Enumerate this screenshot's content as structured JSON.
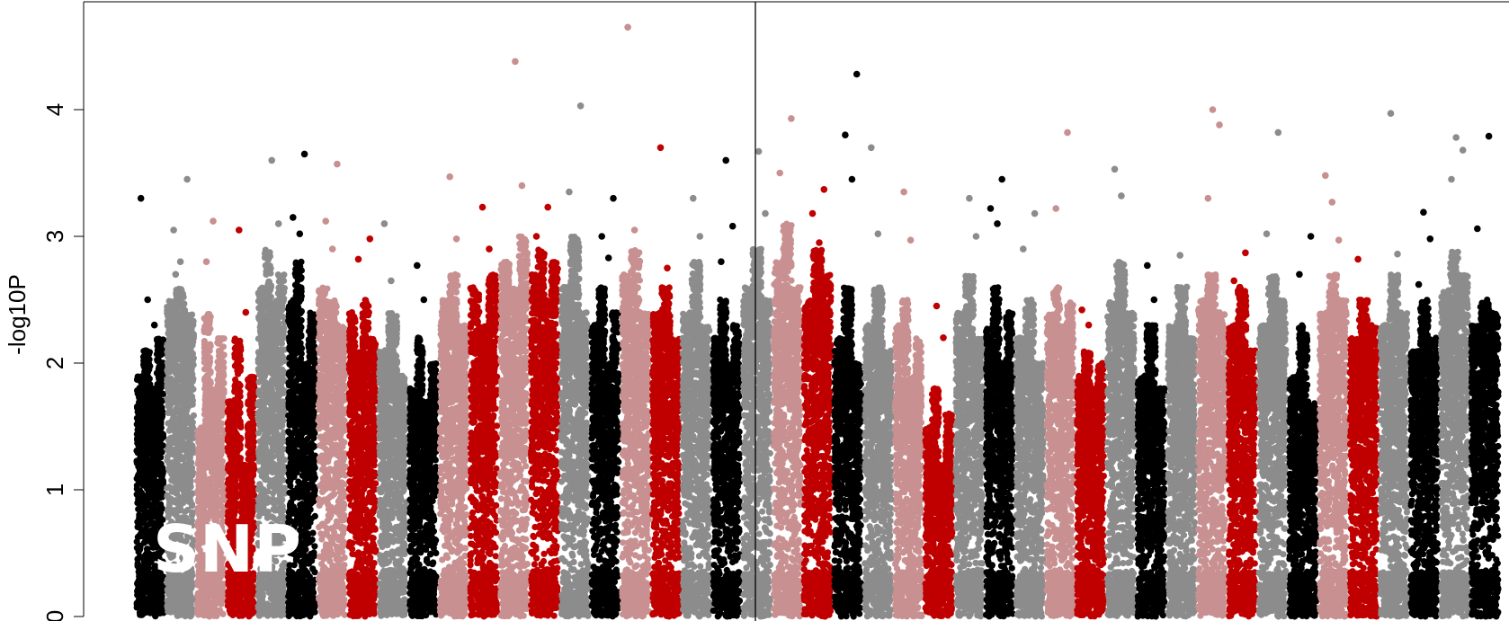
{
  "chart_data": {
    "type": "scatter",
    "title": "",
    "overlay_label": "SNP",
    "xlabel": "",
    "ylabel": "-log10P",
    "ylim": [
      0,
      4.75
    ],
    "yticks": [
      "0",
      "1",
      "2",
      "3",
      "4"
    ],
    "x_axis_visible": false,
    "grid": false,
    "legend": "none",
    "reference_line": {
      "orientation": "vertical",
      "color": "#000000"
    },
    "palette": {
      "dark": "#000000",
      "grey": "#8c8c8c",
      "red": "#c00000",
      "pink": "#c89090"
    },
    "blocks": [
      {
        "color": "dark",
        "top": [
          1.9,
          2.1,
          1.8,
          2.2
        ],
        "outliers": [
          3.3,
          2.5,
          2.3
        ]
      },
      {
        "color": "grey",
        "top": [
          2.5,
          2.6,
          2.4
        ],
        "outliers": [
          3.05,
          2.8,
          3.45,
          2.7
        ]
      },
      {
        "color": "pink",
        "top": [
          1.5,
          2.4,
          1.8,
          2.2
        ],
        "outliers": [
          2.8,
          3.12
        ]
      },
      {
        "color": "red",
        "top": [
          1.7,
          2.2,
          1.2,
          1.9
        ],
        "outliers": [
          3.05,
          2.4
        ]
      },
      {
        "color": "grey",
        "top": [
          2.6,
          2.9,
          2.5,
          2.7
        ],
        "outliers": [
          3.6,
          3.1,
          2.75
        ]
      },
      {
        "color": "dark",
        "top": [
          2.5,
          2.8,
          2.0,
          2.4
        ],
        "outliers": [
          3.65,
          3.15,
          3.02
        ]
      },
      {
        "color": "pink",
        "top": [
          2.6,
          2.5,
          2.3
        ],
        "outliers": [
          3.57,
          3.12,
          2.9
        ]
      },
      {
        "color": "red",
        "top": [
          2.4,
          2.1,
          2.5,
          2.2
        ],
        "outliers": [
          2.98,
          2.82
        ]
      },
      {
        "color": "grey",
        "top": [
          2.1,
          2.4,
          1.9
        ],
        "outliers": [
          3.1,
          2.65
        ]
      },
      {
        "color": "dark",
        "top": [
          1.8,
          2.2,
          1.7,
          2.0
        ],
        "outliers": [
          2.77,
          2.5
        ]
      },
      {
        "color": "pink",
        "top": [
          2.5,
          2.7,
          2.3
        ],
        "outliers": [
          3.47,
          2.98
        ]
      },
      {
        "color": "red",
        "top": [
          2.6,
          2.3,
          2.7
        ],
        "outliers": [
          3.23,
          2.9
        ]
      },
      {
        "color": "pink",
        "top": [
          2.8,
          2.6,
          3.0
        ],
        "outliers": [
          4.38,
          3.4
        ]
      },
      {
        "color": "red",
        "top": [
          2.7,
          2.9,
          2.5,
          2.8
        ],
        "outliers": [
          3.23,
          3.0
        ]
      },
      {
        "color": "grey",
        "top": [
          2.6,
          3.0,
          2.4
        ],
        "outliers": [
          4.03,
          3.35
        ]
      },
      {
        "color": "dark",
        "top": [
          2.3,
          2.6,
          2.0,
          2.4
        ],
        "outliers": [
          3.3,
          3.0,
          2.83
        ]
      },
      {
        "color": "pink",
        "top": [
          2.7,
          2.9,
          2.4
        ],
        "outliers": [
          4.65,
          3.05
        ]
      },
      {
        "color": "red",
        "top": [
          2.4,
          2.6,
          2.2
        ],
        "outliers": [
          3.7,
          2.75
        ]
      },
      {
        "color": "grey",
        "top": [
          2.4,
          2.8,
          2.3
        ],
        "outliers": [
          3.3,
          3.0
        ]
      },
      {
        "color": "dark",
        "top": [
          2.2,
          2.5,
          2.0,
          2.3
        ],
        "outliers": [
          3.6,
          3.08,
          2.8
        ]
      },
      {
        "color": "grey",
        "top": [
          2.6,
          2.9,
          2.5
        ],
        "outliers": [
          3.67,
          3.18
        ]
      },
      {
        "color": "pink",
        "top": [
          2.8,
          3.1,
          2.6
        ],
        "outliers": [
          3.93,
          3.5
        ]
      },
      {
        "color": "red",
        "top": [
          2.5,
          2.9,
          2.7
        ],
        "outliers": [
          3.37,
          3.18,
          2.95
        ]
      },
      {
        "color": "dark",
        "top": [
          2.2,
          2.6,
          2.0
        ],
        "outliers": [
          4.28,
          3.8,
          3.45
        ]
      },
      {
        "color": "grey",
        "top": [
          2.3,
          2.6,
          2.1
        ],
        "outliers": [
          3.7,
          3.02
        ]
      },
      {
        "color": "pink",
        "top": [
          2.3,
          2.5,
          1.9,
          2.2
        ],
        "outliers": [
          3.35,
          2.97
        ]
      },
      {
        "color": "red",
        "top": [
          1.5,
          1.8,
          1.2,
          1.6
        ],
        "outliers": [
          2.45,
          2.2
        ]
      },
      {
        "color": "grey",
        "top": [
          2.4,
          2.7,
          2.2
        ],
        "outliers": [
          3.3,
          3.0
        ]
      },
      {
        "color": "dark",
        "top": [
          2.3,
          2.6,
          2.0,
          2.4
        ],
        "outliers": [
          3.45,
          3.22,
          3.1
        ]
      },
      {
        "color": "grey",
        "top": [
          2.2,
          2.5,
          2.0
        ],
        "outliers": [
          3.18,
          2.9
        ]
      },
      {
        "color": "pink",
        "top": [
          2.4,
          2.6,
          2.3,
          2.5
        ],
        "outliers": [
          3.82,
          3.22
        ]
      },
      {
        "color": "red",
        "top": [
          1.9,
          2.1,
          1.8,
          2.0
        ],
        "outliers": [
          2.42,
          2.3
        ]
      },
      {
        "color": "grey",
        "top": [
          2.5,
          2.8,
          2.4
        ],
        "outliers": [
          3.53,
          3.32
        ]
      },
      {
        "color": "dark",
        "top": [
          1.9,
          2.3,
          1.8
        ],
        "outliers": [
          2.77,
          2.5
        ]
      },
      {
        "color": "grey",
        "top": [
          2.3,
          2.6,
          2.2
        ],
        "outliers": [
          2.85,
          2.6
        ]
      },
      {
        "color": "pink",
        "top": [
          2.5,
          2.7,
          2.4
        ],
        "outliers": [
          4.0,
          3.88,
          3.3
        ]
      },
      {
        "color": "red",
        "top": [
          2.3,
          2.6,
          2.1
        ],
        "outliers": [
          2.87,
          2.65
        ]
      },
      {
        "color": "grey",
        "top": [
          2.3,
          2.7,
          2.5
        ],
        "outliers": [
          3.82,
          3.02
        ]
      },
      {
        "color": "dark",
        "top": [
          1.9,
          2.3,
          1.7
        ],
        "outliers": [
          3.0,
          2.7
        ]
      },
      {
        "color": "pink",
        "top": [
          2.4,
          2.7,
          2.5
        ],
        "outliers": [
          3.48,
          3.27,
          2.97
        ]
      },
      {
        "color": "red",
        "top": [
          2.2,
          2.5,
          2.3
        ],
        "outliers": [
          2.82,
          2.45
        ]
      },
      {
        "color": "grey",
        "top": [
          2.3,
          2.7,
          2.4
        ],
        "outliers": [
          3.97,
          2.86
        ]
      },
      {
        "color": "dark",
        "top": [
          2.1,
          2.5,
          2.2
        ],
        "outliers": [
          3.19,
          2.98,
          2.62
        ]
      },
      {
        "color": "grey",
        "top": [
          2.6,
          2.9,
          2.7
        ],
        "outliers": [
          3.78,
          3.68,
          3.45
        ]
      },
      {
        "color": "dark",
        "top": [
          2.3,
          2.5,
          2.4
        ],
        "outliers": [
          3.79,
          3.06
        ]
      }
    ]
  }
}
